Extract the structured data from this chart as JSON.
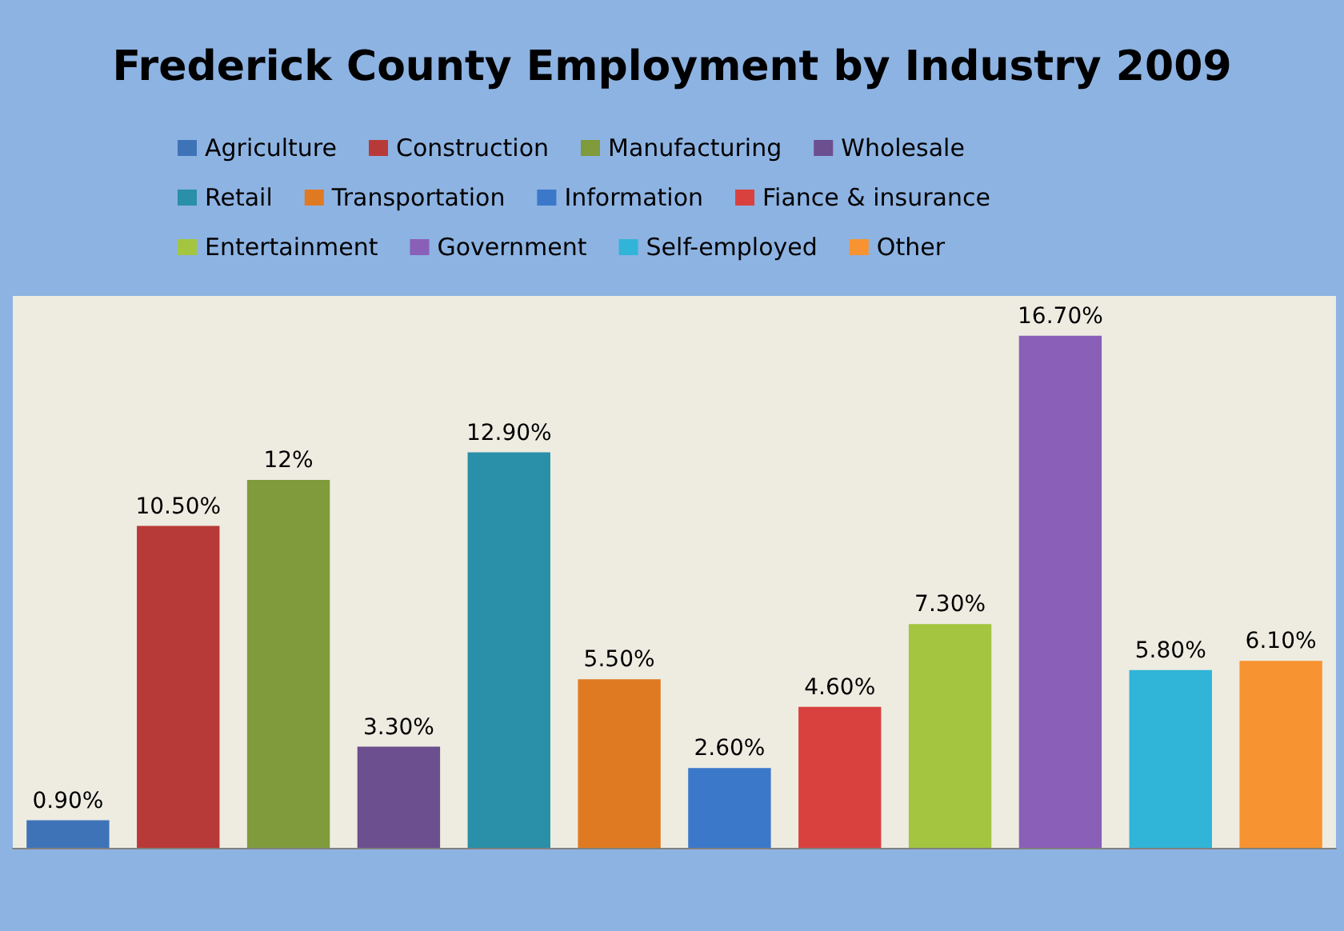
{
  "chart_data": {
    "type": "bar",
    "title": "Frederick County Employment by Industry 2009",
    "categories": [
      null,
      null,
      null,
      null,
      null,
      null,
      null,
      null,
      null,
      null,
      null,
      null
    ],
    "stacked": true,
    "series": [
      {
        "name": "Agriculture",
        "color": "#3f73b8",
        "values": [
          0.9,
          null,
          null,
          null,
          null,
          null,
          null,
          null,
          null,
          null,
          null,
          null
        ],
        "value_labels": [
          "0.90%",
          null,
          null,
          null,
          null,
          null,
          null,
          null,
          null,
          null,
          null,
          null
        ]
      },
      {
        "name": "Construction",
        "color": "#b83a38",
        "values": [
          null,
          10.5,
          null,
          null,
          null,
          null,
          null,
          null,
          null,
          null,
          null,
          null
        ],
        "value_labels": [
          null,
          "10.50%",
          null,
          null,
          null,
          null,
          null,
          null,
          null,
          null,
          null,
          null
        ]
      },
      {
        "name": "Manufacturing",
        "color": "#7f9b3c",
        "values": [
          null,
          null,
          12,
          null,
          null,
          null,
          null,
          null,
          null,
          null,
          null,
          null
        ],
        "value_labels": [
          null,
          null,
          "12%",
          null,
          null,
          null,
          null,
          null,
          null,
          null,
          null,
          null
        ]
      },
      {
        "name": "Wholesale",
        "color": "#6b4f8e",
        "values": [
          null,
          null,
          null,
          3.3,
          null,
          null,
          null,
          null,
          null,
          null,
          null,
          null
        ],
        "value_labels": [
          null,
          null,
          null,
          "3.30%",
          null,
          null,
          null,
          null,
          null,
          null,
          null,
          null
        ]
      },
      {
        "name": "Retail",
        "color": "#2a8fa8",
        "values": [
          null,
          null,
          null,
          null,
          12.9,
          null,
          null,
          null,
          null,
          null,
          null,
          null
        ],
        "value_labels": [
          null,
          null,
          null,
          null,
          "12.90%",
          null,
          null,
          null,
          null,
          null,
          null,
          null
        ]
      },
      {
        "name": "Transportation",
        "color": "#e07a22",
        "values": [
          null,
          null,
          null,
          null,
          null,
          5.5,
          null,
          null,
          null,
          null,
          null,
          null
        ],
        "value_labels": [
          null,
          null,
          null,
          null,
          null,
          "5.50%",
          null,
          null,
          null,
          null,
          null,
          null
        ]
      },
      {
        "name": "Information",
        "color": "#3b78c9",
        "values": [
          null,
          null,
          null,
          null,
          null,
          null,
          2.6,
          null,
          null,
          null,
          null,
          null
        ],
        "value_labels": [
          null,
          null,
          null,
          null,
          null,
          null,
          "2.60%",
          null,
          null,
          null,
          null,
          null
        ]
      },
      {
        "name": "Fiance & insurance",
        "color": "#d9413f",
        "values": [
          null,
          null,
          null,
          null,
          null,
          null,
          null,
          4.6,
          null,
          null,
          null,
          null
        ],
        "value_labels": [
          null,
          null,
          null,
          null,
          null,
          null,
          null,
          "4.60%",
          null,
          null,
          null,
          null
        ]
      },
      {
        "name": "Entertainment",
        "color": "#a3c540",
        "values": [
          null,
          null,
          null,
          null,
          null,
          null,
          null,
          null,
          7.3,
          null,
          null,
          null
        ],
        "value_labels": [
          null,
          null,
          null,
          null,
          null,
          null,
          null,
          null,
          "7.30%",
          null,
          null,
          null
        ]
      },
      {
        "name": "Government",
        "color": "#8a5fb8",
        "values": [
          null,
          null,
          null,
          null,
          null,
          null,
          null,
          null,
          null,
          16.7,
          null,
          null
        ],
        "value_labels": [
          null,
          null,
          null,
          null,
          null,
          null,
          null,
          null,
          null,
          "16.70%",
          null,
          null
        ]
      },
      {
        "name": "Self-employed",
        "color": "#30b4d8",
        "values": [
          null,
          null,
          null,
          null,
          null,
          null,
          null,
          null,
          null,
          null,
          5.8,
          null
        ],
        "value_labels": [
          null,
          null,
          null,
          null,
          null,
          null,
          null,
          null,
          null,
          null,
          "5.80%",
          null
        ]
      },
      {
        "name": "Other",
        "color": "#f79330",
        "values": [
          null,
          null,
          null,
          null,
          null,
          null,
          null,
          null,
          null,
          null,
          null,
          6.1
        ],
        "value_labels": [
          null,
          null,
          null,
          null,
          null,
          null,
          null,
          null,
          null,
          null,
          null,
          "6.10%"
        ]
      }
    ],
    "legend": "top"
  }
}
